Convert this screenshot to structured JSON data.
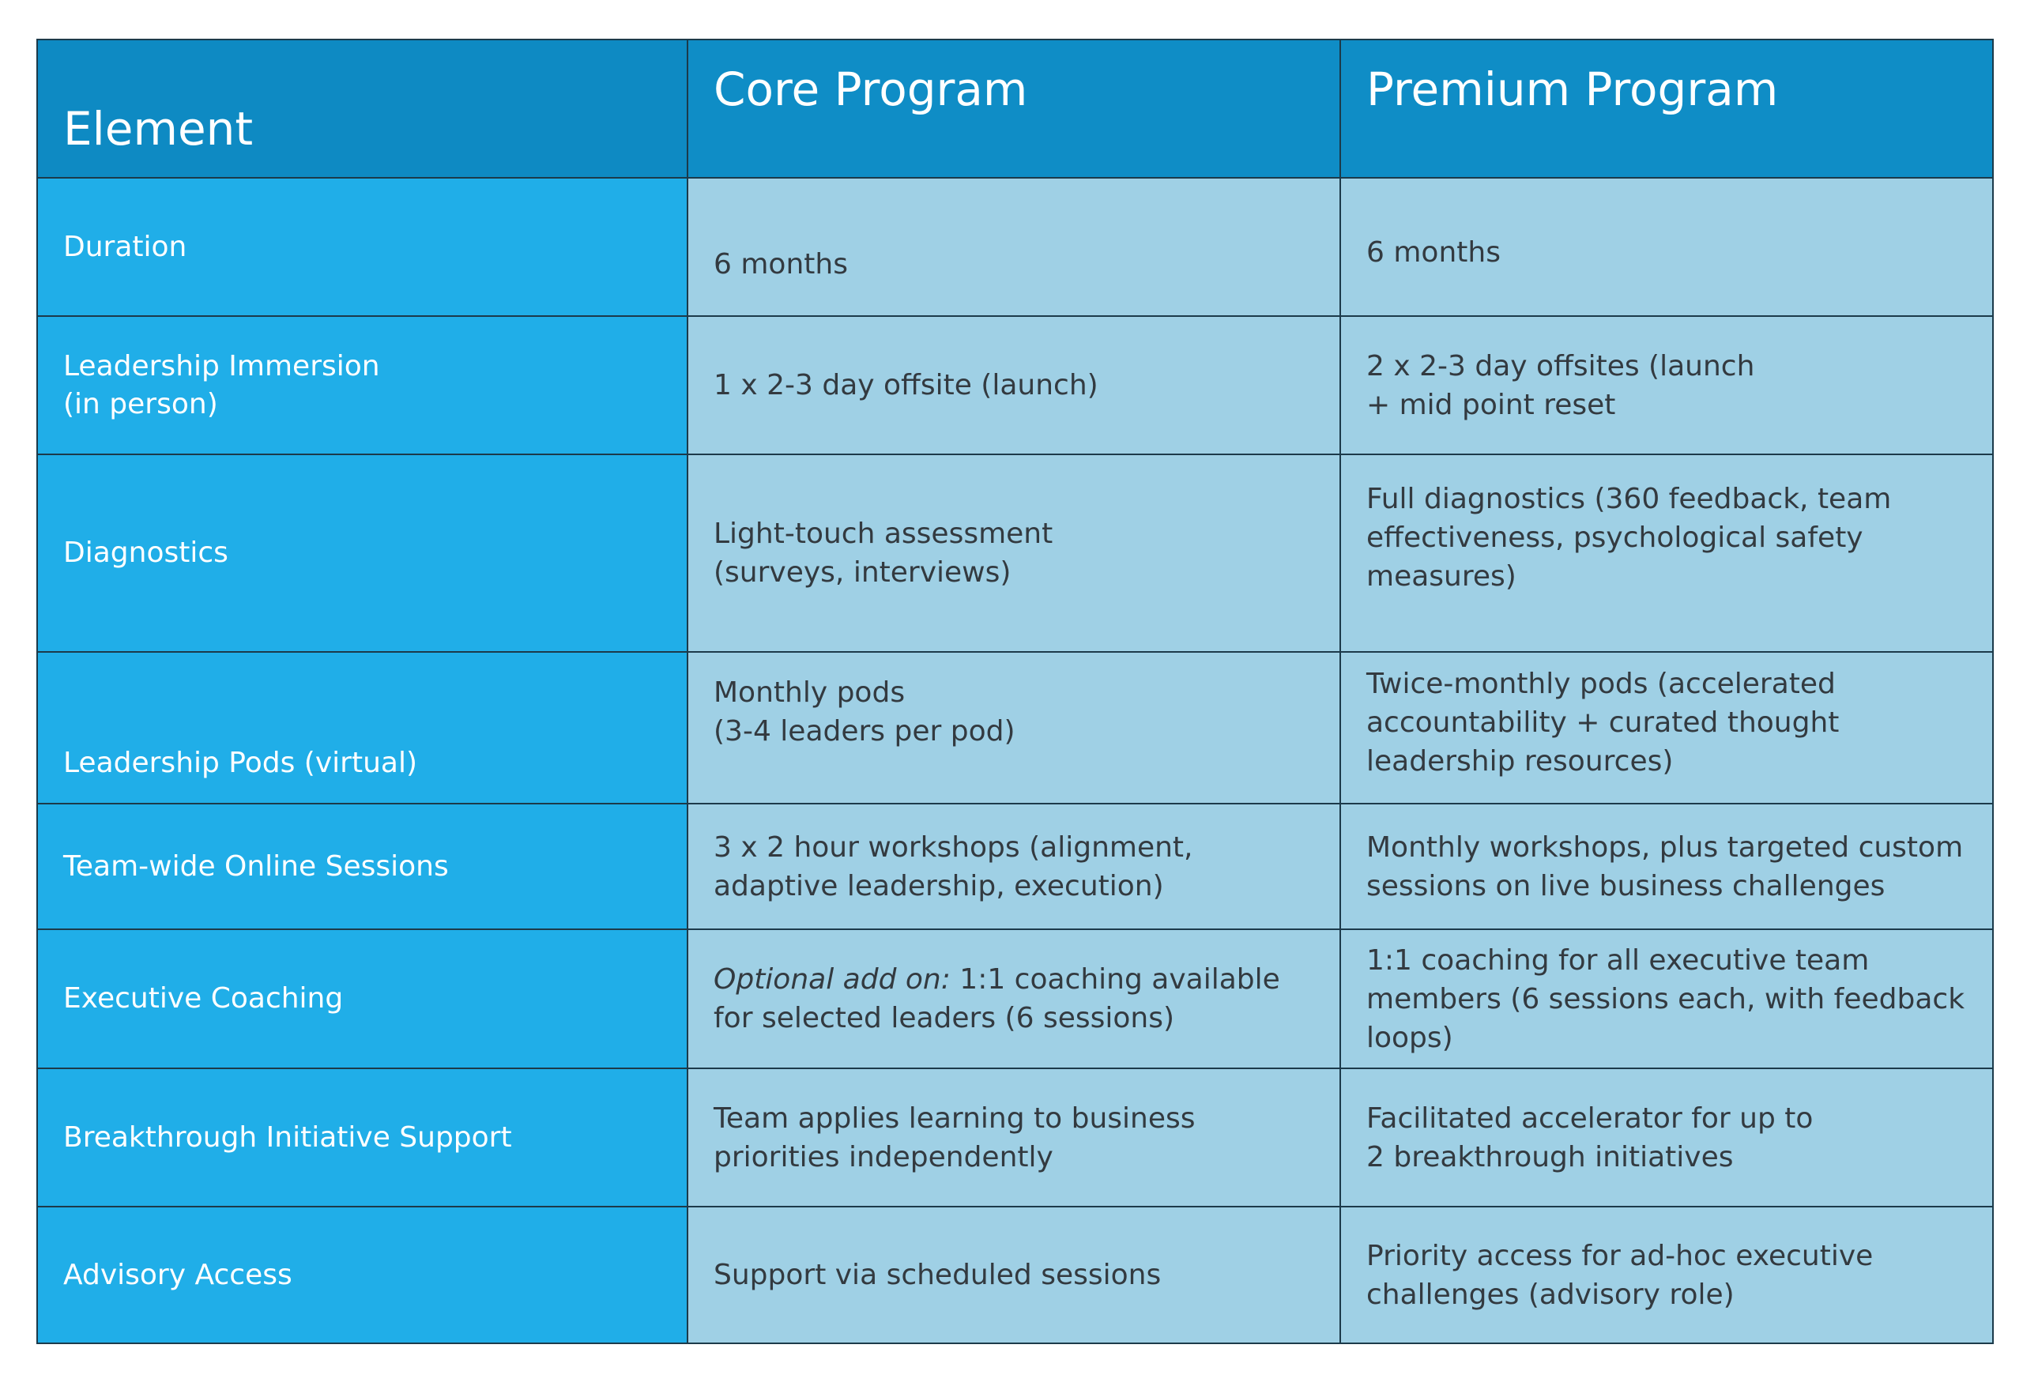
{
  "header": {
    "col1": "Element",
    "col2": "Core Program",
    "col3": "Premium Program"
  },
  "rows": [
    {
      "element": [
        "Duration"
      ],
      "core": [
        "6 months"
      ],
      "premium": [
        "6 months"
      ]
    },
    {
      "element": [
        "Leadership Immersion",
        "(in person)"
      ],
      "core": [
        "1 x 2-3 day offsite (launch)"
      ],
      "premium": [
        "2 x 2-3 day offsites (launch",
        "+ mid point reset"
      ]
    },
    {
      "element": [
        "Diagnostics"
      ],
      "core": [
        "Light-touch assessment",
        "(surveys, interviews)"
      ],
      "premium": [
        "Full diagnostics (360 feedback, team",
        "effectiveness, psychological safety",
        "measures)"
      ]
    },
    {
      "element": [
        "Leadership Pods (virtual)"
      ],
      "core": [
        "Monthly pods",
        "(3-4 leaders per pod)"
      ],
      "premium": [
        "Twice-monthly pods (accelerated",
        "accountability + curated thought",
        "leadership resources)"
      ]
    },
    {
      "element": [
        "Team-wide Online Sessions"
      ],
      "core": [
        "3 x 2 hour workshops (alignment,",
        "adaptive leadership, execution)"
      ],
      "premium": [
        "Monthly workshops, plus targeted custom",
        "sessions on live business challenges"
      ]
    },
    {
      "element": [
        "Executive Coaching"
      ],
      "core_prefix": "Optional add on:",
      "core": [
        " 1:1 coaching available",
        "for selected leaders (6 sessions)"
      ],
      "premium": [
        "1:1 coaching for all executive team",
        "members (6 sessions each, with feedback",
        "loops)"
      ]
    },
    {
      "element": [
        "Breakthrough Initiative Support"
      ],
      "core": [
        "Team applies learning to business",
        "priorities independently"
      ],
      "premium": [
        "Facilitated accelerator for up to",
        "2 breakthrough initiatives"
      ]
    },
    {
      "element": [
        "Advisory Access"
      ],
      "core": [
        "Support via scheduled sessions"
      ],
      "premium": [
        "Priority access for ad-hoc executive",
        "challenges (advisory role)"
      ]
    }
  ]
}
